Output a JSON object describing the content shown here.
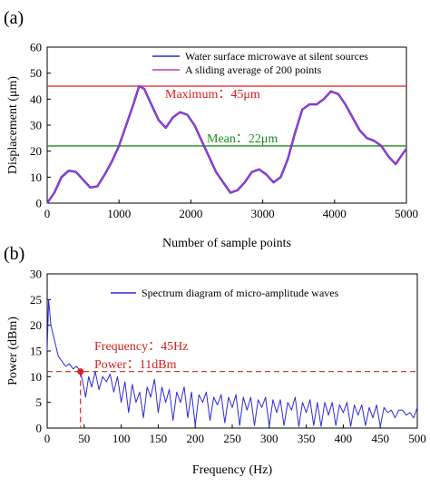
{
  "chart_data": [
    {
      "panel_label": "(a)",
      "type": "line",
      "xlabel": "Number of sample points",
      "ylabel": "Displacement (μm)",
      "xlim": [
        0,
        5000
      ],
      "ylim": [
        0,
        60
      ],
      "xticks": [
        "0",
        "1000",
        "2000",
        "3000",
        "4000",
        "5000"
      ],
      "yticks": [
        "0",
        "10",
        "20",
        "30",
        "40",
        "50",
        "60"
      ],
      "legend_position": "top-right",
      "colors": {
        "raw": "#2b2bd9",
        "avg": "#c03ac0",
        "max_line": "#d62020",
        "mean_line": "#1f8a1f"
      },
      "series": [
        {
          "name": "Water surface microwave at silent sources",
          "x": [
            0,
            100,
            200,
            300,
            400,
            500,
            600,
            700,
            800,
            900,
            1000,
            1100,
            1200,
            1280,
            1350,
            1450,
            1550,
            1650,
            1750,
            1850,
            1950,
            2050,
            2150,
            2250,
            2350,
            2450,
            2550,
            2650,
            2750,
            2850,
            2950,
            3050,
            3150,
            3250,
            3350,
            3450,
            3550,
            3650,
            3750,
            3850,
            3950,
            4050,
            4150,
            4250,
            4350,
            4450,
            4550,
            4650,
            4750,
            4850,
            4950,
            5000
          ],
          "y": [
            0,
            4,
            10,
            12.5,
            12,
            9,
            6,
            6.5,
            11,
            16,
            22,
            30,
            38,
            45,
            44,
            38,
            32,
            29,
            33,
            35,
            34,
            30,
            24,
            18,
            12,
            8,
            4,
            5,
            8,
            12,
            13,
            11,
            8,
            10,
            17,
            27,
            36,
            38,
            38,
            40,
            43,
            42,
            38,
            33,
            28,
            25,
            24,
            22,
            18,
            15,
            19,
            21
          ]
        },
        {
          "name": "A sliding average of 200 points",
          "x": [
            0,
            100,
            200,
            300,
            400,
            500,
            600,
            700,
            800,
            900,
            1000,
            1100,
            1200,
            1280,
            1350,
            1450,
            1550,
            1650,
            1750,
            1850,
            1950,
            2050,
            2150,
            2250,
            2350,
            2450,
            2550,
            2650,
            2750,
            2850,
            2950,
            3050,
            3150,
            3250,
            3350,
            3450,
            3550,
            3650,
            3750,
            3850,
            3950,
            4050,
            4150,
            4250,
            4350,
            4450,
            4550,
            4650,
            4750,
            4850,
            4950,
            5000
          ],
          "y": [
            0,
            4,
            10,
            12.5,
            12,
            9,
            6,
            6.5,
            11,
            16,
            22,
            30,
            38,
            45,
            44,
            38,
            32,
            29,
            33,
            35,
            34,
            30,
            24,
            18,
            12,
            8,
            4,
            5,
            8,
            12,
            13,
            11,
            8,
            10,
            17,
            27,
            36,
            38,
            38,
            40,
            43,
            42,
            38,
            33,
            28,
            25,
            24,
            22,
            18,
            15,
            19,
            21
          ]
        }
      ],
      "reference_lines": [
        {
          "y": 45,
          "label": "Maximum：45μm"
        },
        {
          "y": 22,
          "label": "Mean：22μm"
        }
      ]
    },
    {
      "panel_label": "(b)",
      "type": "line",
      "xlabel": "Frequency (Hz)",
      "ylabel": "Power (dBm)",
      "xlim": [
        0,
        500
      ],
      "ylim": [
        0,
        30
      ],
      "xticks": [
        "0",
        "50",
        "100",
        "150",
        "200",
        "250",
        "300",
        "350",
        "400",
        "450",
        "500"
      ],
      "yticks": [
        "0",
        "5",
        "10",
        "15",
        "20",
        "25",
        "30"
      ],
      "legend_position": "top-right",
      "colors": {
        "spectrum": "#2b2bd9",
        "marker": "#d62020"
      },
      "series": [
        {
          "name": "Spectrum diagram of micro-amplitude waves",
          "x": [
            0,
            2,
            5,
            10,
            15,
            20,
            25,
            30,
            35,
            40,
            45,
            48,
            52,
            56,
            60,
            65,
            70,
            75,
            80,
            85,
            90,
            95,
            100,
            105,
            110,
            115,
            120,
            125,
            130,
            135,
            140,
            145,
            150,
            155,
            160,
            165,
            170,
            175,
            180,
            185,
            190,
            195,
            200,
            205,
            210,
            215,
            220,
            225,
            230,
            235,
            240,
            245,
            250,
            255,
            260,
            265,
            270,
            275,
            280,
            285,
            290,
            295,
            300,
            305,
            310,
            315,
            320,
            325,
            330,
            335,
            340,
            345,
            350,
            355,
            360,
            365,
            370,
            375,
            380,
            385,
            390,
            395,
            400,
            405,
            410,
            415,
            420,
            425,
            430,
            435,
            440,
            445,
            450,
            455,
            460,
            465,
            470,
            475,
            480,
            485,
            490,
            495,
            500
          ],
          "y": [
            15,
            25,
            20,
            17,
            14,
            13,
            12,
            12.5,
            11.5,
            12,
            11,
            9,
            6,
            10,
            8,
            11,
            7.5,
            10,
            9,
            10.5,
            7,
            10,
            5,
            9,
            3,
            8.5,
            5,
            7,
            2,
            8,
            6,
            9.5,
            3,
            8,
            5,
            7.5,
            1.5,
            7,
            5,
            8,
            2,
            7,
            0.5,
            6.5,
            5,
            7,
            1.5,
            6,
            4.5,
            6.5,
            1,
            6,
            4,
            6.5,
            0.5,
            6,
            3.5,
            6,
            0.5,
            5.5,
            4,
            6,
            0.3,
            5.5,
            3,
            5.5,
            0.5,
            5,
            3.5,
            6,
            0.3,
            5,
            3,
            5.5,
            0.5,
            5,
            0.3,
            5,
            2.5,
            5,
            0.5,
            4.5,
            3,
            5,
            0.3,
            4.5,
            2.5,
            4.5,
            0.5,
            4,
            2,
            4.5,
            0.3,
            4,
            3,
            3.5,
            2,
            3.5,
            3.5,
            2.5,
            3,
            2,
            4
          ]
        }
      ],
      "annotations": [
        {
          "x": 45,
          "y": 11,
          "text": [
            "Frequency：45Hz",
            "Power：11dBm"
          ]
        }
      ]
    }
  ]
}
